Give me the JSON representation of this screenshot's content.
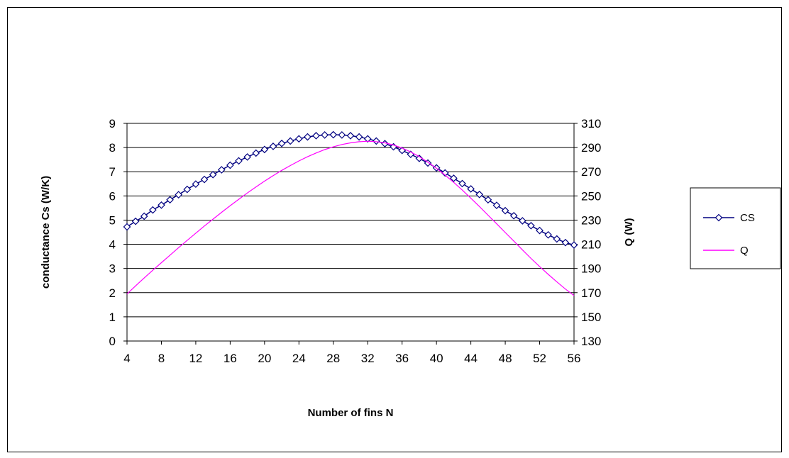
{
  "chart_data": {
    "type": "line",
    "xlabel": "Number of fins N",
    "ylabel": "conductance Cs (W/K)",
    "y2label": "Q (W)",
    "xlim": [
      4,
      56
    ],
    "ylim": [
      0,
      9
    ],
    "y2lim": [
      130,
      310
    ],
    "x_ticks": [
      4,
      8,
      12,
      16,
      20,
      24,
      28,
      32,
      36,
      40,
      44,
      48,
      52,
      56
    ],
    "y_ticks": [
      0,
      1,
      2,
      3,
      4,
      5,
      6,
      7,
      8,
      9
    ],
    "y2_ticks": [
      130,
      150,
      170,
      190,
      210,
      230,
      250,
      270,
      290,
      310
    ],
    "grid": "horizontal",
    "legend_position": "right",
    "x": [
      4,
      5,
      6,
      7,
      8,
      9,
      10,
      11,
      12,
      13,
      14,
      15,
      16,
      17,
      18,
      19,
      20,
      21,
      22,
      23,
      24,
      25,
      26,
      27,
      28,
      29,
      30,
      31,
      32,
      33,
      34,
      35,
      36,
      37,
      38,
      39,
      40,
      41,
      42,
      43,
      44,
      45,
      46,
      47,
      48,
      49,
      50,
      51,
      52,
      53,
      54,
      55,
      56
    ],
    "series": [
      {
        "name": "CS",
        "axis": "left",
        "color": "#000080",
        "marker": "diamond",
        "values": [
          4.72,
          4.95,
          5.16,
          5.42,
          5.62,
          5.84,
          6.05,
          6.27,
          6.49,
          6.68,
          6.88,
          7.08,
          7.27,
          7.45,
          7.61,
          7.77,
          7.92,
          8.05,
          8.17,
          8.27,
          8.36,
          8.44,
          8.49,
          8.52,
          8.53,
          8.52,
          8.49,
          8.44,
          8.36,
          8.27,
          8.16,
          8.03,
          7.88,
          7.72,
          7.55,
          7.36,
          7.16,
          6.95,
          6.73,
          6.51,
          6.29,
          6.06,
          5.84,
          5.61,
          5.39,
          5.18,
          4.97,
          4.77,
          4.57,
          4.39,
          4.22,
          4.07,
          3.97
        ]
      },
      {
        "name": "Q",
        "axis": "right",
        "color": "#ff00ff",
        "marker": "none",
        "values": [
          168.9,
          175.6,
          182.1,
          188.5,
          194.8,
          201.0,
          207.2,
          213.2,
          219.2,
          225.1,
          230.8,
          236.4,
          241.9,
          247.2,
          252.4,
          257.4,
          262.2,
          266.8,
          271.1,
          275.1,
          278.9,
          282.4,
          285.5,
          288.3,
          290.6,
          292.5,
          293.9,
          294.8,
          295.2,
          294.9,
          293.9,
          292.1,
          289.6,
          286.4,
          282.5,
          277.9,
          272.8,
          267.2,
          261.2,
          254.8,
          248.1,
          241.2,
          234.1,
          226.9,
          219.7,
          212.6,
          205.4,
          198.3,
          191.6,
          185.1,
          178.9,
          173.0,
          167.6
        ]
      }
    ]
  }
}
